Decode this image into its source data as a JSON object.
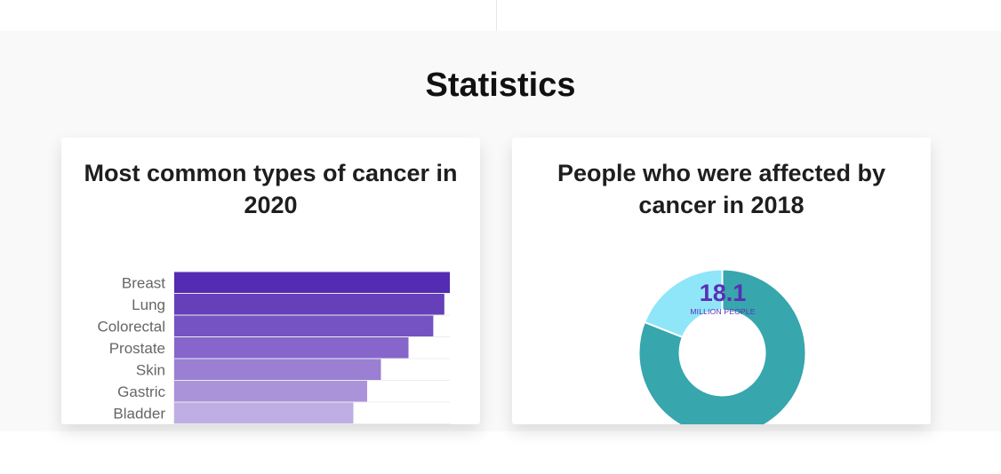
{
  "section": {
    "title": "Statistics"
  },
  "cards": [
    {
      "title": "Most common types of cancer in 2020"
    },
    {
      "title": "People who were affected by cancer in 2018"
    }
  ],
  "donut_center": {
    "value": "18.1",
    "unit": "MILLION PEOPLE"
  },
  "chart_data": [
    {
      "type": "bar",
      "orientation": "horizontal",
      "title": "Most common types of cancer in 2020",
      "categories": [
        "Breast",
        "Lung",
        "Colorectal",
        "Prostate",
        "Skin",
        "Gastric",
        "Bladder"
      ],
      "values": [
        100,
        98,
        94,
        85,
        75,
        70,
        65
      ],
      "xlim": [
        0,
        100
      ],
      "colors": [
        "#542bb3",
        "#6540b9",
        "#7553c2",
        "#8666cb",
        "#9a7fd3",
        "#ab93da",
        "#bfaee4"
      ],
      "grid": true,
      "legend": "none"
    },
    {
      "type": "pie",
      "variant": "donut",
      "title": "People who were affected by cancer in 2018",
      "values": [
        81,
        19
      ],
      "colors": [
        "#37a6ad",
        "#8fe6f9"
      ],
      "center_text": "18.1 MILLION PEOPLE",
      "legend": "none"
    }
  ]
}
